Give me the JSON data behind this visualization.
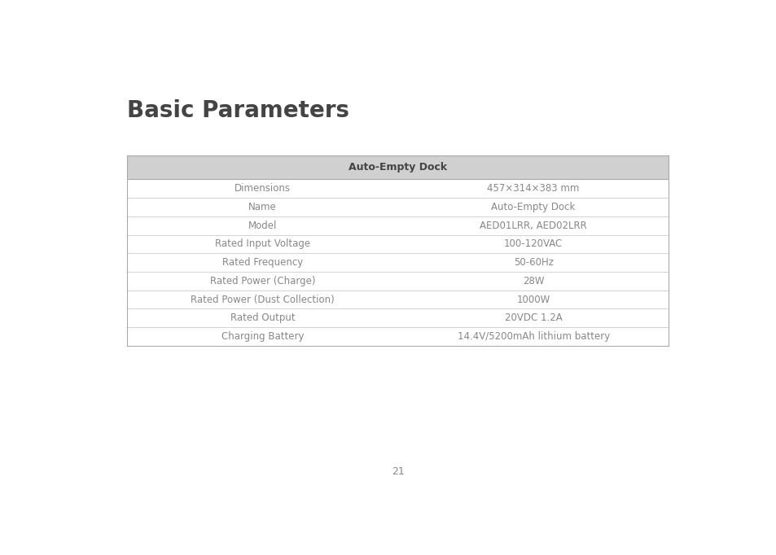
{
  "title": "Basic Parameters",
  "page_number": "21",
  "header": "Auto-Empty Dock",
  "header_bg": "#d0d0d0",
  "rows": [
    [
      "Dimensions",
      "457×314×383 mm"
    ],
    [
      "Name",
      "Auto-Empty Dock"
    ],
    [
      "Model",
      "AED01LRR, AED02LRR"
    ],
    [
      "Rated Input Voltage",
      "100-120VAC"
    ],
    [
      "Rated Frequency",
      "50-60Hz"
    ],
    [
      "Rated Power (Charge)",
      "28W"
    ],
    [
      "Rated Power (Dust Collection)",
      "1000W"
    ],
    [
      "Rated Output",
      "20VDC 1.2A"
    ],
    [
      "Charging Battery",
      "14.4V/5200mAh lithium battery"
    ]
  ],
  "bg_color": "#ffffff",
  "text_color": "#888888",
  "header_text_color": "#444444",
  "title_color": "#444444",
  "line_color": "#cccccc",
  "outer_line_color": "#aaaaaa",
  "fig_width": 9.54,
  "fig_height": 6.82,
  "dpi": 100
}
